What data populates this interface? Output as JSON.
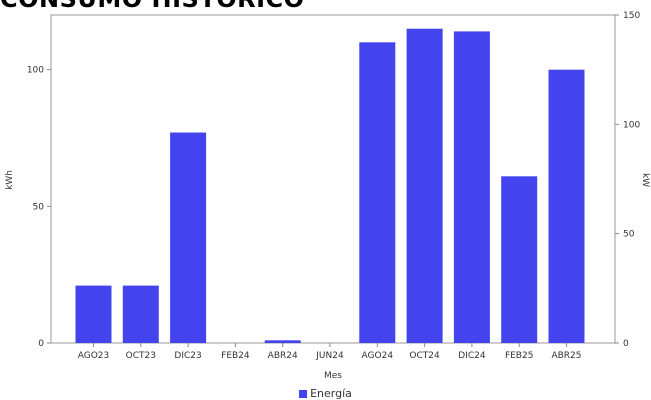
{
  "title": "CONSUMO HISTÓRICO",
  "chart_data": {
    "type": "bar",
    "categories": [
      "AGO23",
      "OCT23",
      "DIC23",
      "FEB24",
      "ABR24",
      "JUN24",
      "AGO24",
      "OCT24",
      "DIC24",
      "FEB25",
      "ABR25"
    ],
    "series": [
      {
        "name": "Energía",
        "values": [
          21,
          21,
          77,
          0,
          1,
          0,
          110,
          115,
          114,
          61,
          100
        ],
        "color": "#4444ee"
      }
    ],
    "xlabel": "Mes",
    "ylabel": "kWh",
    "ylim": [
      0,
      120
    ],
    "yticks": [
      0,
      50,
      100
    ],
    "y2label": "kW",
    "y2lim": [
      0,
      150
    ],
    "y2ticks": [
      0,
      50,
      100,
      150
    ],
    "legend_position": "bottom",
    "grid": false
  }
}
